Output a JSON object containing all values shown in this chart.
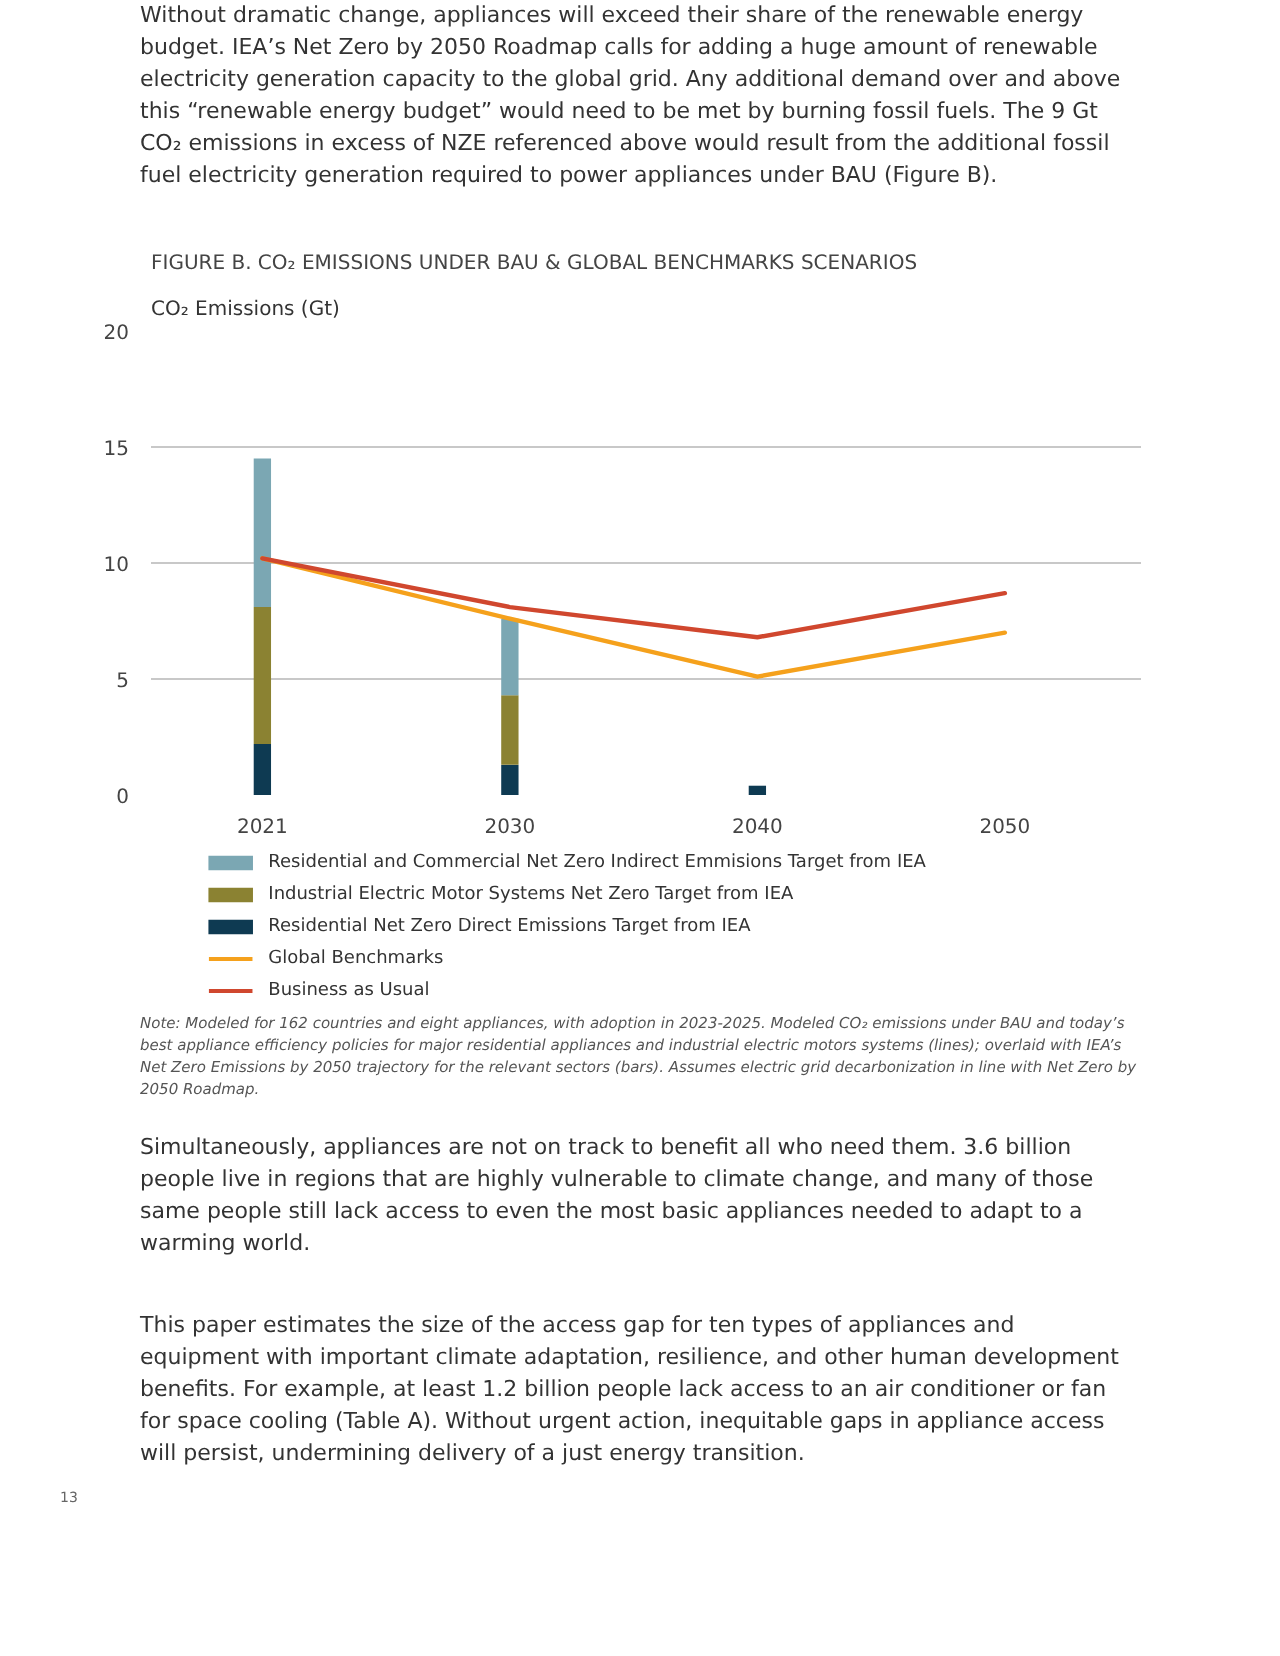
{
  "chart_data": {
    "type": "bar",
    "stacked": true,
    "title": "FIGURE B. CO₂ EMISSIONS UNDER BAU & GLOBAL BENCHMARKS SCENARIOS",
    "ylabel": "CO₂ Emissions (Gt)",
    "categories": [
      "2021",
      "2030",
      "2040",
      "2050"
    ],
    "series": [
      {
        "name": "Residential Net Zero Direct Emissions Target from IEA",
        "color": "#0e3a52",
        "values": [
          2.2,
          1.3,
          0.4,
          null
        ]
      },
      {
        "name": "Industrial Electric Motor Systems Net Zero Target from IEA",
        "color": "#8b8232",
        "values": [
          5.9,
          3.0,
          null,
          null
        ]
      },
      {
        "name": "Residential and Commercial Net Zero Indirect Emmisions Target from IEA",
        "color": "#7ba7b3",
        "values": [
          6.4,
          3.3,
          null,
          null
        ]
      },
      {
        "name": "Global Benchmarks",
        "type": "line",
        "color": "#f5a11c",
        "values": [
          10.2,
          7.6,
          5.1,
          7.0
        ]
      },
      {
        "name": "Business as Usual",
        "type": "line",
        "color": "#d0472e",
        "values": [
          10.2,
          8.1,
          6.8,
          8.7
        ]
      }
    ],
    "ylim": [
      0,
      20
    ],
    "yticks": [
      0,
      5,
      10,
      15,
      20
    ],
    "grid": "y",
    "legend": "bottom",
    "annotations": [
      "Without dramatic change, appliances will exceed their share of the renewable energy budget. IEA’s Net Zero by 2050 Roadmap calls for adding a huge amount of renewable electricity generation capacity to the global grid. Any additional demand over and above this “renewable energy budget” would need to be met by burning fossil fuels. The 9 Gt CO₂ emissions in excess of NZE referenced above would result from the additional fossil fuel electricity generation required to power appliances under BAU (Figure B).",
      "Note: Modeled for 162 countries and eight appliances, with adoption in 2023-2025. Modeled CO₂ emissions under BAU and today’s best appliance efficiency policies for major residential appliances and industrial electric motors systems (lines); overlaid with IEA’s Net Zero Emissions by 2050 trajectory for the relevant sectors (bars). Assumes electric grid decarbonization in line with Net Zero by 2050 Roadmap.",
      "Simultaneously, appliances are not on track to benefit all who need them. 3.6 billion people live in regions that are highly vulnerable to climate change, and many of those same people still lack access to even the most basic appliances needed to adapt to a warming world.",
      "This paper estimates the size of the access gap for ten types of appliances and equipment with important climate adaptation, resilience, and other human development benefits. For example, at least 1.2 billion people lack access to an air conditioner or fan for space cooling (Table A). Without urgent action, inequitable gaps in appliance access will persist, undermining delivery of a just energy transition.",
      "13"
    ]
  }
}
